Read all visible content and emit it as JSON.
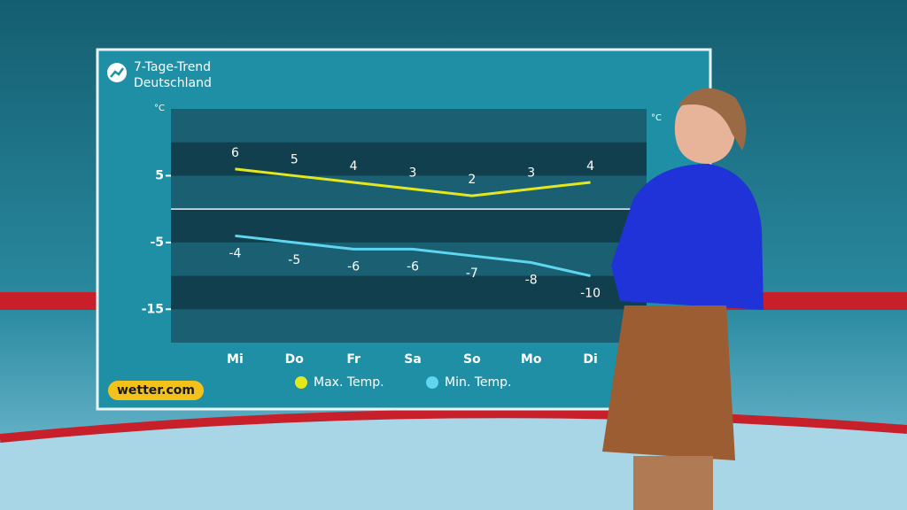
{
  "chart_data": {
    "type": "line",
    "title": "7-Tage-Trend",
    "subtitle": "Deutschland",
    "y_unit": "°C",
    "categories": [
      "Mi",
      "Do",
      "Fr",
      "Sa",
      "So",
      "Mo",
      "Di"
    ],
    "series": [
      {
        "name": "Max. Temp.",
        "color": "#e3e81e",
        "values": [
          6,
          5,
          4,
          3,
          2,
          3,
          4
        ]
      },
      {
        "name": "Min. Temp.",
        "color": "#5ed6f0",
        "values": [
          -4,
          -5,
          -6,
          -6,
          -7,
          -8,
          -10
        ]
      }
    ],
    "ylim": [
      -20,
      15
    ],
    "yticks": [
      5,
      -5,
      -15
    ],
    "source": "wetter.com"
  }
}
